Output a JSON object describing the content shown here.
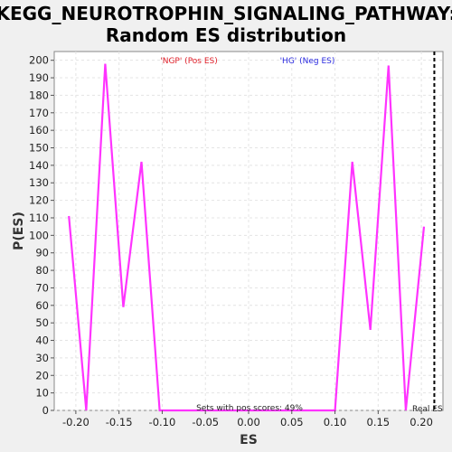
{
  "chart_data": {
    "type": "line",
    "title_line1": "KEGG_NEUROTROPHIN_SIGNALING_PATHWAY:",
    "title_line2": "Random ES distribution",
    "xlabel": "ES",
    "ylabel": "P(ES)",
    "xlim": [
      -0.225,
      0.225
    ],
    "ylim": [
      0,
      205
    ],
    "x_ticks": [
      -0.2,
      -0.15,
      -0.1,
      -0.05,
      0.0,
      0.05,
      0.1,
      0.15,
      0.2
    ],
    "x_tick_labels": [
      "-0.20",
      "-0.15",
      "-0.10",
      "-0.05",
      "0.00",
      "0.05",
      "0.10",
      "0.15",
      "0.20"
    ],
    "y_ticks": [
      0,
      10,
      20,
      30,
      40,
      50,
      60,
      70,
      80,
      90,
      100,
      110,
      120,
      130,
      140,
      150,
      160,
      170,
      180,
      190,
      200
    ],
    "y_tick_labels": [
      "0",
      "10",
      "20",
      "30",
      "40",
      "50",
      "60",
      "70",
      "80",
      "90",
      "100",
      "110",
      "120",
      "130",
      "140",
      "150",
      "160",
      "170",
      "180",
      "190",
      "200"
    ],
    "grid": true,
    "series": [
      {
        "color": "#ff33ff",
        "x": [
          -0.208,
          -0.188,
          -0.166,
          -0.145,
          -0.124,
          -0.103,
          -0.082,
          0.1,
          0.12,
          0.141,
          0.162,
          0.182,
          0.203
        ],
        "values": [
          111,
          0,
          198,
          59,
          142,
          0,
          0,
          0,
          142,
          46,
          197,
          0,
          105
        ]
      }
    ],
    "legend": {
      "pos_label": "'NGP' (Pos ES)",
      "pos_color": "#e0202a",
      "neg_label": "'HG' (Neg ES)",
      "neg_color": "#2a2ae0"
    },
    "annotation": "Sets with pos scores: 49%",
    "real_es": {
      "label": "Real ES",
      "value": 0.215
    }
  }
}
